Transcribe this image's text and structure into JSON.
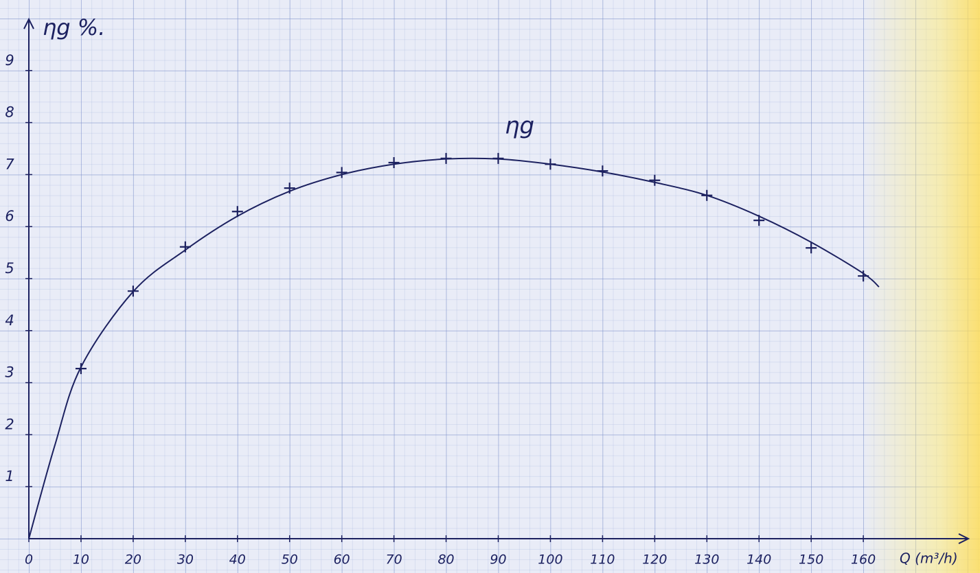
{
  "chart_data": {
    "type": "line",
    "y_label": "ηg %.",
    "x_label": "Q (m³/h)",
    "x": [
      10,
      20,
      30,
      40,
      50,
      60,
      70,
      80,
      90,
      100,
      110,
      120,
      130,
      140,
      150,
      160
    ],
    "series": [
      {
        "name": "ηg",
        "color": "#1c2160",
        "values": [
          3.27,
          4.76,
          5.61,
          6.29,
          6.74,
          7.04,
          7.23,
          7.31,
          7.31,
          7.2,
          7.07,
          6.89,
          6.6,
          6.12,
          5.59,
          5.05
        ]
      }
    ],
    "fit": {
      "x": [
        0,
        5,
        10,
        20,
        30,
        40,
        50,
        60,
        70,
        80,
        90,
        100,
        110,
        120,
        130,
        140,
        150,
        160,
        163
      ],
      "values": [
        0,
        1.8,
        3.3,
        4.75,
        5.55,
        6.2,
        6.68,
        7.0,
        7.2,
        7.3,
        7.3,
        7.2,
        7.05,
        6.85,
        6.6,
        6.2,
        5.7,
        5.1,
        4.84
      ]
    },
    "xlim": [
      0,
      180
    ],
    "ylim": [
      0,
      10
    ],
    "xticks": [
      0,
      10,
      20,
      30,
      40,
      50,
      60,
      70,
      80,
      90,
      100,
      110,
      120,
      130,
      140,
      150,
      160
    ],
    "yticks": [
      1,
      2,
      3,
      4,
      5,
      6,
      7,
      8,
      9
    ]
  }
}
